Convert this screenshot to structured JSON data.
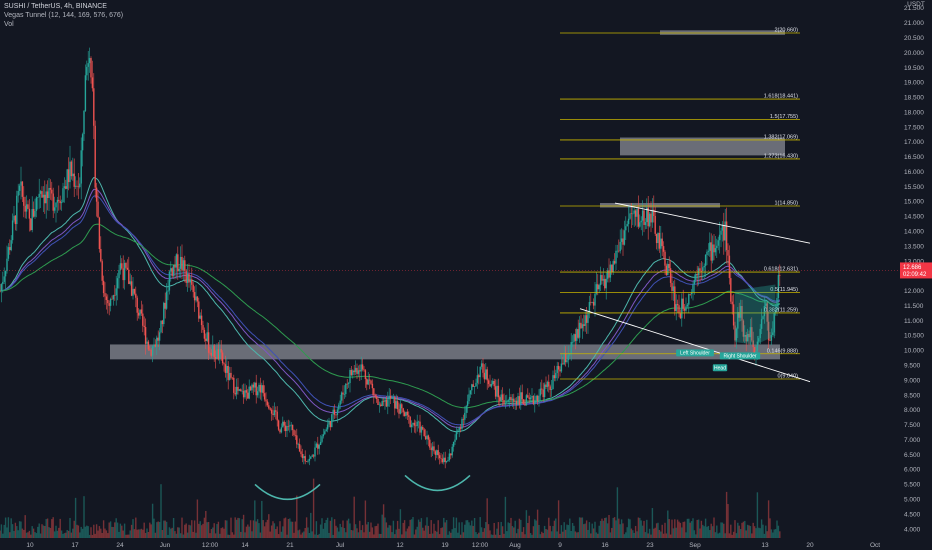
{
  "legend": {
    "title": "SUSHI / TetherUS, 4h, BINANCE",
    "indicator": "Vegas Tunnel (12, 144, 169, 576, 676)",
    "volume": "Vol"
  },
  "colors": {
    "background": "#131722",
    "up": "#26a69a",
    "down": "#ef5350",
    "fib_line": "#c8b400",
    "price_tag": "#f23645",
    "ema_green": "#2e9b4f",
    "ema_teal": "#4db6ac",
    "ema_purple": "#7e57c2",
    "ema_blue": "#3f51b5"
  },
  "chart_data": {
    "type": "candlestick",
    "currency_label": "USDT",
    "y_range": [
      3.7,
      21.5
    ],
    "y_ticks": [
      "4.000",
      "4.500",
      "5.000",
      "5.500",
      "6.000",
      "6.500",
      "7.000",
      "7.500",
      "8.000",
      "8.500",
      "9.000",
      "9.500",
      "10.000",
      "10.500",
      "11.000",
      "11.500",
      "12.000",
      "12.500",
      "13.000",
      "13.500",
      "14.000",
      "14.500",
      "15.000",
      "15.500",
      "16.000",
      "16.500",
      "17.000",
      "17.500",
      "18.000",
      "18.500",
      "19.000",
      "19.500",
      "20.000",
      "20.500",
      "21.000",
      "21.500"
    ],
    "y_tick_values": [
      4.0,
      4.5,
      5.0,
      5.5,
      6.0,
      6.5,
      7.0,
      7.5,
      8.0,
      8.5,
      9.0,
      9.5,
      10.0,
      10.5,
      11.0,
      11.5,
      12.0,
      12.5,
      13.0,
      13.5,
      14.0,
      14.5,
      15.0,
      15.5,
      16.0,
      16.5,
      17.0,
      17.5,
      18.0,
      18.5,
      19.0,
      19.5,
      20.0,
      20.5,
      21.0,
      21.5
    ],
    "x_range": [
      0,
      175
    ],
    "x_ticks": [
      {
        "label": "10",
        "x": 6
      },
      {
        "label": "17",
        "x": 15
      },
      {
        "label": "24",
        "x": 24
      },
      {
        "label": "Jun",
        "x": 33
      },
      {
        "label": "12:00",
        "x": 42
      },
      {
        "label": "14",
        "x": 49
      },
      {
        "label": "21",
        "x": 58
      },
      {
        "label": "Jul",
        "x": 68
      },
      {
        "label": "12",
        "x": 80
      },
      {
        "label": "19",
        "x": 89
      },
      {
        "label": "12:00",
        "x": 96
      },
      {
        "label": "Aug",
        "x": 103
      },
      {
        "label": "9",
        "x": 112
      },
      {
        "label": "16",
        "x": 121
      },
      {
        "label": "23",
        "x": 130
      },
      {
        "label": "Sep",
        "x": 139
      },
      {
        "label": "13",
        "x": 153
      },
      {
        "label": "20",
        "x": 162
      },
      {
        "label": "Oct",
        "x": 175
      }
    ],
    "price_path": [
      [
        0,
        12.0
      ],
      [
        2,
        13.6
      ],
      [
        4,
        15.4
      ],
      [
        6,
        14.2
      ],
      [
        8,
        15.5
      ],
      [
        10,
        15.0
      ],
      [
        12,
        15.2
      ],
      [
        14,
        16.0
      ],
      [
        16,
        15.5
      ],
      [
        17,
        19.0
      ],
      [
        18,
        20.5
      ],
      [
        19,
        16.0
      ],
      [
        20,
        13.2
      ],
      [
        21,
        11.8
      ],
      [
        22,
        11.5
      ],
      [
        24,
        12.9
      ],
      [
        26,
        12.3
      ],
      [
        28,
        11.1
      ],
      [
        30,
        10.0
      ],
      [
        32,
        10.5
      ],
      [
        34,
        12.7
      ],
      [
        36,
        13.0
      ],
      [
        38,
        12.2
      ],
      [
        40,
        11.2
      ],
      [
        42,
        10.0
      ],
      [
        44,
        9.8
      ],
      [
        46,
        9.0
      ],
      [
        48,
        8.5
      ],
      [
        50,
        8.6
      ],
      [
        52,
        8.8
      ],
      [
        54,
        8.2
      ],
      [
        56,
        7.4
      ],
      [
        58,
        7.5
      ],
      [
        60,
        6.5
      ],
      [
        62,
        6.3
      ],
      [
        64,
        7.0
      ],
      [
        66,
        7.6
      ],
      [
        68,
        8.3
      ],
      [
        70,
        9.2
      ],
      [
        72,
        9.5
      ],
      [
        74,
        8.9
      ],
      [
        76,
        8.0
      ],
      [
        78,
        8.4
      ],
      [
        80,
        8.0
      ],
      [
        82,
        7.6
      ],
      [
        84,
        7.4
      ],
      [
        86,
        6.8
      ],
      [
        88,
        6.5
      ],
      [
        89,
        6.2
      ],
      [
        90,
        6.5
      ],
      [
        92,
        7.5
      ],
      [
        94,
        8.5
      ],
      [
        96,
        9.4
      ],
      [
        98,
        9.0
      ],
      [
        100,
        8.4
      ],
      [
        102,
        8.3
      ],
      [
        104,
        8.4
      ],
      [
        106,
        8.2
      ],
      [
        108,
        8.6
      ],
      [
        110,
        8.8
      ],
      [
        112,
        9.4
      ],
      [
        114,
        10.0
      ],
      [
        116,
        10.7
      ],
      [
        118,
        11.4
      ],
      [
        120,
        12.2
      ],
      [
        122,
        12.6
      ],
      [
        124,
        13.6
      ],
      [
        126,
        14.5
      ],
      [
        128,
        14.4
      ],
      [
        130,
        14.6
      ],
      [
        132,
        13.5
      ],
      [
        134,
        12.5
      ],
      [
        135,
        11.6
      ],
      [
        136,
        11.3
      ],
      [
        138,
        12.0
      ],
      [
        140,
        12.9
      ],
      [
        142,
        13.3
      ],
      [
        144,
        13.8
      ],
      [
        145,
        14.1
      ],
      [
        146,
        12.2
      ],
      [
        147,
        10.6
      ],
      [
        148,
        11.5
      ],
      [
        149,
        10.2
      ],
      [
        150,
        10.8
      ],
      [
        151,
        10.0
      ],
      [
        152,
        10.8
      ],
      [
        153,
        11.6
      ],
      [
        154,
        10.2
      ],
      [
        155,
        11.4
      ],
      [
        156,
        12.7
      ]
    ],
    "last_price": {
      "label": "12.686",
      "countdown": "02:09:42",
      "value": 12.686
    },
    "fib_levels": [
      {
        "label": "0(9.040)",
        "value": 9.04
      },
      {
        "label": "0.146(9.888)",
        "value": 9.888
      },
      {
        "label": "0.382(11.259)",
        "value": 11.259
      },
      {
        "label": "0.5(11.945)",
        "value": 11.945
      },
      {
        "label": "0.618(12.631)",
        "value": 12.631
      },
      {
        "label": "1(14.850)",
        "value": 14.85
      },
      {
        "label": "1.272(16.430)",
        "value": 16.43
      },
      {
        "label": "1.382(17.069)",
        "value": 17.069
      },
      {
        "label": "1.5(17.755)",
        "value": 17.755
      },
      {
        "label": "1.618(18.441)",
        "value": 18.441
      },
      {
        "label": "2(20.660)",
        "value": 20.66
      }
    ],
    "zones": [
      {
        "x": [
          22,
          156
        ],
        "y": [
          9.7,
          10.2
        ]
      },
      {
        "x": [
          120,
          144
        ],
        "y": [
          14.8,
          14.95
        ]
      },
      {
        "x": [
          124,
          157
        ],
        "y": [
          16.55,
          17.15
        ]
      },
      {
        "x": [
          132,
          157
        ],
        "y": [
          20.6,
          20.75
        ]
      }
    ],
    "channel_upper": [
      [
        123,
        14.95
      ],
      [
        162,
        13.6
      ]
    ],
    "channel_lower": [
      [
        116,
        11.4
      ],
      [
        162,
        8.95
      ]
    ],
    "patterns": [
      {
        "label": "Left Shoulder",
        "x": 139,
        "value": 9.9
      },
      {
        "label": "Right Shoulder",
        "x": 148,
        "value": 9.8
      },
      {
        "label": "Head",
        "x": 144,
        "value": 9.4
      }
    ]
  }
}
